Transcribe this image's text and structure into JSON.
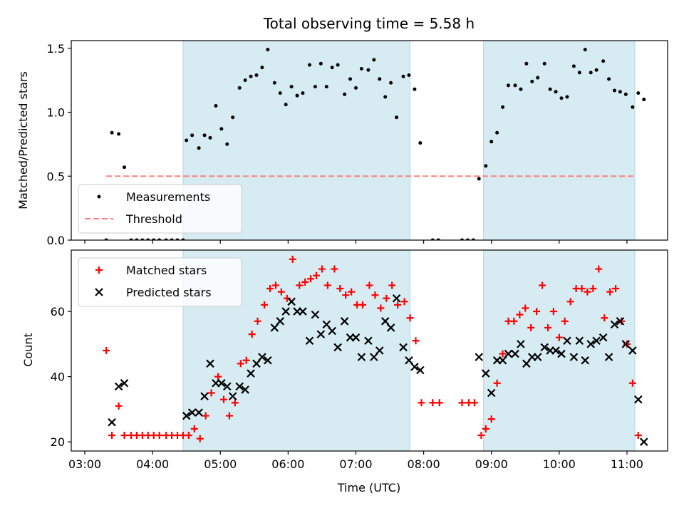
{
  "title": "Total observing time = 5.58 h",
  "colors": {
    "observing_span": "#add8e6",
    "measurements": "#000000",
    "threshold": "#ff7f7f",
    "matched": "#ff0000",
    "predicted": "#000000"
  },
  "chart_data": [
    {
      "type": "scatter",
      "ylabel": "Matched/Predicted stars",
      "ylim": [
        0,
        1.56
      ],
      "xlim": [
        "02:48",
        "11:36"
      ],
      "yticks": [
        "0.0",
        "0.5",
        "1.0",
        "1.5"
      ],
      "ytick_values": [
        0,
        0.5,
        1.0,
        1.5
      ],
      "legend": {
        "placement": "lower-left",
        "entries": [
          "Measurements",
          "Threshold"
        ]
      },
      "observing_spans": [
        [
          "04:27",
          "07:48"
        ],
        [
          "08:53",
          "11:07"
        ]
      ],
      "threshold": {
        "name": "Threshold",
        "value": 0.5,
        "x_range": [
          "03:19",
          "11:07"
        ]
      },
      "series": [
        {
          "name": "Measurements",
          "points": [
            [
              "03:19",
              0.0
            ],
            [
              "03:24",
              0.84
            ],
            [
              "03:30",
              0.83
            ],
            [
              "03:35",
              0.57
            ],
            [
              "03:41",
              0.0
            ],
            [
              "03:46",
              0.0
            ],
            [
              "03:51",
              0.0
            ],
            [
              "03:56",
              0.0
            ],
            [
              "04:01",
              0.0
            ],
            [
              "04:06",
              0.0
            ],
            [
              "04:12",
              0.0
            ],
            [
              "04:17",
              0.0
            ],
            [
              "04:22",
              0.0
            ],
            [
              "04:27",
              0.0
            ],
            [
              "04:30",
              0.78
            ],
            [
              "04:35",
              0.82
            ],
            [
              "04:41",
              0.72
            ],
            [
              "04:46",
              0.82
            ],
            [
              "04:51",
              0.8
            ],
            [
              "04:56",
              1.05
            ],
            [
              "05:01",
              0.87
            ],
            [
              "05:06",
              0.75
            ],
            [
              "05:11",
              0.96
            ],
            [
              "05:17",
              1.19
            ],
            [
              "05:22",
              1.25
            ],
            [
              "05:27",
              1.28
            ],
            [
              "05:32",
              1.29
            ],
            [
              "05:37",
              1.35
            ],
            [
              "05:42",
              1.49
            ],
            [
              "05:48",
              1.23
            ],
            [
              "05:53",
              1.15
            ],
            [
              "05:58",
              1.06
            ],
            [
              "06:03",
              1.2
            ],
            [
              "06:08",
              1.13
            ],
            [
              "06:13",
              1.15
            ],
            [
              "06:19",
              1.37
            ],
            [
              "06:24",
              1.2
            ],
            [
              "06:29",
              1.38
            ],
            [
              "06:34",
              1.2
            ],
            [
              "06:39",
              1.35
            ],
            [
              "06:44",
              1.37
            ],
            [
              "06:50",
              1.14
            ],
            [
              "06:55",
              1.26
            ],
            [
              "07:00",
              1.19
            ],
            [
              "07:05",
              1.34
            ],
            [
              "07:11",
              1.33
            ],
            [
              "07:16",
              1.41
            ],
            [
              "07:21",
              1.26
            ],
            [
              "07:26",
              1.12
            ],
            [
              "07:31",
              1.23
            ],
            [
              "07:36",
              0.96
            ],
            [
              "07:42",
              1.28
            ],
            [
              "07:47",
              1.29
            ],
            [
              "07:52",
              1.18
            ],
            [
              "07:57",
              0.76
            ],
            [
              "08:08",
              0.0
            ],
            [
              "08:13",
              0.0
            ],
            [
              "08:34",
              0.0
            ],
            [
              "08:39",
              0.0
            ],
            [
              "08:44",
              0.0
            ],
            [
              "08:49",
              0.48
            ],
            [
              "08:55",
              0.58
            ],
            [
              "09:00",
              0.77
            ],
            [
              "09:05",
              0.84
            ],
            [
              "09:10",
              1.04
            ],
            [
              "09:15",
              1.21
            ],
            [
              "09:21",
              1.21
            ],
            [
              "09:26",
              1.18
            ],
            [
              "09:31",
              1.38
            ],
            [
              "09:36",
              1.24
            ],
            [
              "09:41",
              1.27
            ],
            [
              "09:47",
              1.38
            ],
            [
              "09:52",
              1.18
            ],
            [
              "09:57",
              1.16
            ],
            [
              "10:02",
              1.11
            ],
            [
              "10:07",
              1.12
            ],
            [
              "10:13",
              1.36
            ],
            [
              "10:18",
              1.31
            ],
            [
              "10:23",
              1.49
            ],
            [
              "10:28",
              1.31
            ],
            [
              "10:33",
              1.33
            ],
            [
              "10:39",
              1.4
            ],
            [
              "10:44",
              1.26
            ],
            [
              "10:49",
              1.17
            ],
            [
              "10:54",
              1.16
            ],
            [
              "10:59",
              1.14
            ],
            [
              "11:05",
              1.04
            ],
            [
              "11:10",
              1.15
            ],
            [
              "11:15",
              1.1
            ]
          ]
        }
      ]
    },
    {
      "type": "scatter",
      "ylabel": "Count",
      "xlabel": "Time (UTC)",
      "ylim": [
        17.2,
        78.8
      ],
      "xlim": [
        "02:48",
        "11:36"
      ],
      "xticks": [
        "03:00",
        "04:00",
        "05:00",
        "06:00",
        "07:00",
        "08:00",
        "09:00",
        "10:00",
        "11:00"
      ],
      "yticks": [
        "20",
        "40",
        "60"
      ],
      "ytick_values": [
        20,
        40,
        60
      ],
      "legend": {
        "placement": "upper-left",
        "entries": [
          "Matched stars",
          "Predicted stars"
        ]
      },
      "observing_spans": [
        [
          "04:27",
          "07:48"
        ],
        [
          "08:53",
          "11:07"
        ]
      ],
      "series": [
        {
          "name": "Matched stars",
          "marker": "+",
          "points": [
            [
              "03:19",
              48
            ],
            [
              "03:24",
              22
            ],
            [
              "03:30",
              31
            ],
            [
              "03:35",
              22
            ],
            [
              "03:41",
              22
            ],
            [
              "03:46",
              22
            ],
            [
              "03:51",
              22
            ],
            [
              "03:56",
              22
            ],
            [
              "04:01",
              22
            ],
            [
              "04:06",
              22
            ],
            [
              "04:12",
              22
            ],
            [
              "04:17",
              22
            ],
            [
              "04:22",
              22
            ],
            [
              "04:27",
              22
            ],
            [
              "04:32",
              22
            ],
            [
              "04:37",
              24
            ],
            [
              "04:42",
              21
            ],
            [
              "04:47",
              28
            ],
            [
              "04:52",
              35
            ],
            [
              "04:58",
              40
            ],
            [
              "05:03",
              33
            ],
            [
              "05:08",
              28
            ],
            [
              "05:13",
              32
            ],
            [
              "05:18",
              44
            ],
            [
              "05:23",
              45
            ],
            [
              "05:28",
              53
            ],
            [
              "05:33",
              57
            ],
            [
              "05:39",
              62
            ],
            [
              "05:44",
              67
            ],
            [
              "05:49",
              68
            ],
            [
              "05:54",
              66
            ],
            [
              "05:59",
              64
            ],
            [
              "06:04",
              76
            ],
            [
              "06:10",
              68
            ],
            [
              "06:15",
              69
            ],
            [
              "06:20",
              70
            ],
            [
              "06:25",
              71
            ],
            [
              "06:30",
              73
            ],
            [
              "06:35",
              68
            ],
            [
              "06:41",
              73
            ],
            [
              "06:46",
              67
            ],
            [
              "06:51",
              65
            ],
            [
              "06:56",
              66
            ],
            [
              "07:01",
              62
            ],
            [
              "07:06",
              62
            ],
            [
              "07:12",
              68
            ],
            [
              "07:17",
              65
            ],
            [
              "07:22",
              61
            ],
            [
              "07:27",
              64
            ],
            [
              "07:32",
              68
            ],
            [
              "07:37",
              62
            ],
            [
              "07:43",
              63
            ],
            [
              "07:48",
              58
            ],
            [
              "07:53",
              51
            ],
            [
              "07:58",
              32
            ],
            [
              "08:08",
              32
            ],
            [
              "08:14",
              32
            ],
            [
              "08:34",
              32
            ],
            [
              "08:40",
              32
            ],
            [
              "08:45",
              32
            ],
            [
              "08:51",
              22
            ],
            [
              "08:55",
              24
            ],
            [
              "09:00",
              27
            ],
            [
              "09:05",
              38
            ],
            [
              "09:10",
              47
            ],
            [
              "09:15",
              57
            ],
            [
              "09:20",
              57
            ],
            [
              "09:25",
              59
            ],
            [
              "09:30",
              61
            ],
            [
              "09:35",
              55
            ],
            [
              "09:40",
              60
            ],
            [
              "09:45",
              68
            ],
            [
              "09:50",
              55
            ],
            [
              "09:55",
              60
            ],
            [
              "10:00",
              52
            ],
            [
              "10:05",
              57
            ],
            [
              "10:10",
              63
            ],
            [
              "10:15",
              67
            ],
            [
              "10:20",
              67
            ],
            [
              "10:25",
              66
            ],
            [
              "10:30",
              67
            ],
            [
              "10:35",
              73
            ],
            [
              "10:40",
              58
            ],
            [
              "10:45",
              66
            ],
            [
              "10:50",
              67
            ],
            [
              "10:55",
              57
            ],
            [
              "11:00",
              50
            ],
            [
              "11:05",
              38
            ],
            [
              "11:10",
              22
            ]
          ]
        },
        {
          "name": "Predicted stars",
          "marker": "x",
          "points": [
            [
              "03:24",
              26
            ],
            [
              "03:30",
              37
            ],
            [
              "03:35",
              38
            ],
            [
              "04:30",
              28
            ],
            [
              "04:35",
              29
            ],
            [
              "04:41",
              29
            ],
            [
              "04:46",
              34
            ],
            [
              "04:51",
              44
            ],
            [
              "04:56",
              38
            ],
            [
              "05:01",
              38
            ],
            [
              "05:06",
              37
            ],
            [
              "05:11",
              34
            ],
            [
              "05:17",
              37
            ],
            [
              "05:22",
              36
            ],
            [
              "05:27",
              41
            ],
            [
              "05:32",
              44
            ],
            [
              "05:37",
              46
            ],
            [
              "05:42",
              45
            ],
            [
              "05:48",
              55
            ],
            [
              "05:53",
              57
            ],
            [
              "05:58",
              60
            ],
            [
              "06:03",
              63
            ],
            [
              "06:08",
              60
            ],
            [
              "06:13",
              60
            ],
            [
              "06:19",
              51
            ],
            [
              "06:24",
              59
            ],
            [
              "06:29",
              53
            ],
            [
              "06:34",
              56
            ],
            [
              "06:39",
              54
            ],
            [
              "06:44",
              49
            ],
            [
              "06:50",
              57
            ],
            [
              "06:55",
              52
            ],
            [
              "07:00",
              52
            ],
            [
              "07:05",
              46
            ],
            [
              "07:11",
              51
            ],
            [
              "07:16",
              46
            ],
            [
              "07:21",
              48
            ],
            [
              "07:26",
              57
            ],
            [
              "07:31",
              55
            ],
            [
              "07:36",
              64
            ],
            [
              "07:42",
              49
            ],
            [
              "07:47",
              45
            ],
            [
              "07:52",
              43
            ],
            [
              "07:57",
              42
            ],
            [
              "08:49",
              46
            ],
            [
              "08:55",
              41
            ],
            [
              "09:00",
              35
            ],
            [
              "09:05",
              45
            ],
            [
              "09:10",
              45
            ],
            [
              "09:15",
              47
            ],
            [
              "09:21",
              47
            ],
            [
              "09:26",
              50
            ],
            [
              "09:31",
              44
            ],
            [
              "09:36",
              46
            ],
            [
              "09:41",
              46
            ],
            [
              "09:47",
              49
            ],
            [
              "09:52",
              48
            ],
            [
              "09:57",
              48
            ],
            [
              "10:02",
              47
            ],
            [
              "10:07",
              51
            ],
            [
              "10:13",
              46
            ],
            [
              "10:18",
              51
            ],
            [
              "10:23",
              45
            ],
            [
              "10:28",
              50
            ],
            [
              "10:33",
              51
            ],
            [
              "10:39",
              52
            ],
            [
              "10:44",
              46
            ],
            [
              "10:49",
              56
            ],
            [
              "10:54",
              57
            ],
            [
              "10:59",
              50
            ],
            [
              "11:05",
              48
            ],
            [
              "11:10",
              33
            ],
            [
              "11:15",
              20
            ]
          ]
        }
      ]
    }
  ]
}
